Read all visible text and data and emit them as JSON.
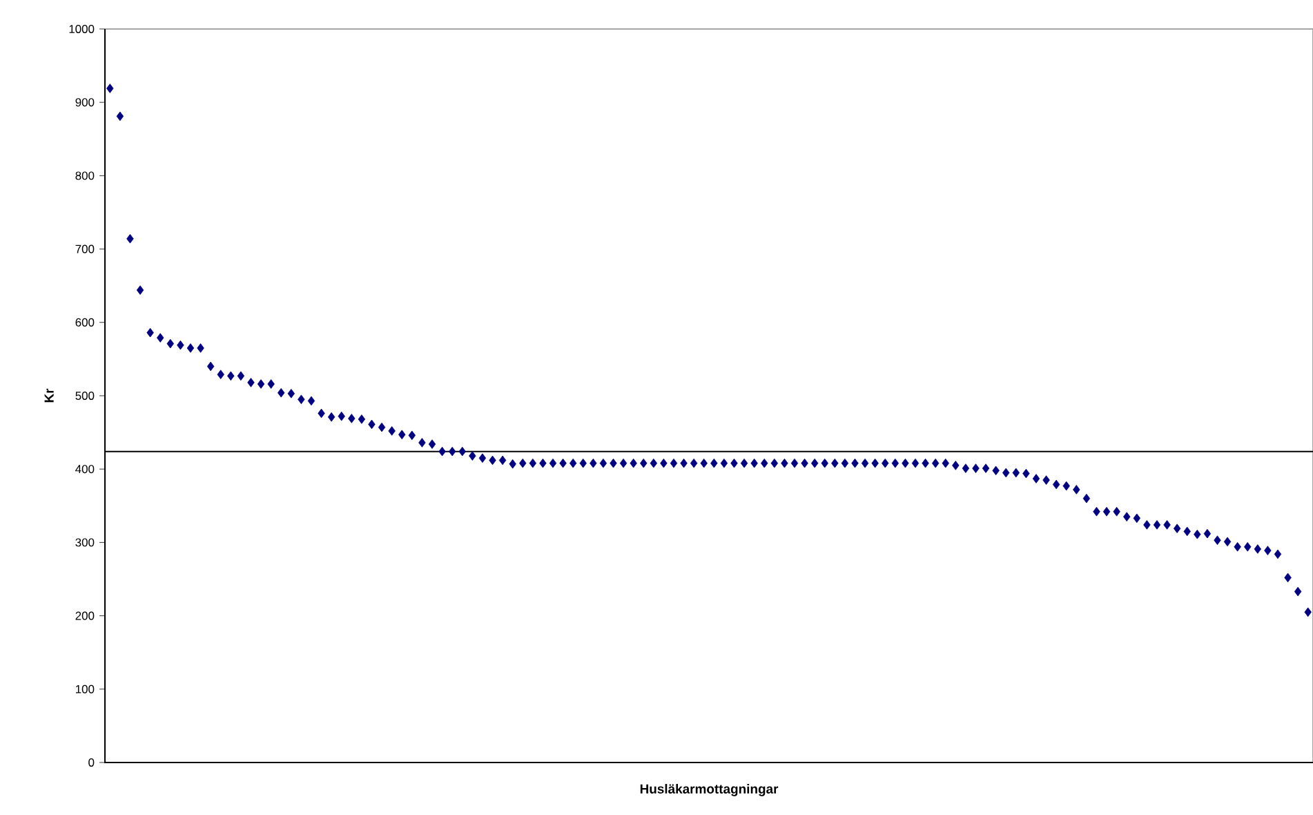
{
  "chart_data": {
    "type": "scatter",
    "xlabel": "Husläkarmottagningar",
    "ylabel": "Kr",
    "categories": [
      null,
      null,
      null,
      null,
      null,
      null,
      null,
      null,
      null,
      null,
      null,
      null,
      null,
      null,
      null,
      null,
      null,
      null,
      null,
      null,
      null,
      null,
      null,
      null,
      null,
      null,
      null,
      null,
      null,
      null,
      null,
      null,
      null,
      null,
      null,
      null,
      null,
      null,
      null,
      null,
      null,
      null,
      null,
      null,
      null,
      null,
      null,
      null,
      null,
      null,
      null,
      null,
      null,
      null,
      null,
      null,
      null,
      null,
      null,
      null,
      null,
      null,
      null,
      null,
      null,
      null,
      null,
      null,
      null,
      null,
      null,
      null,
      null,
      null,
      null,
      null,
      null,
      null,
      null,
      null,
      null,
      null,
      null,
      null,
      null,
      null,
      null,
      null,
      null,
      null,
      null,
      null,
      null,
      null,
      null,
      null,
      null,
      null,
      null,
      null,
      null,
      null,
      null,
      null,
      null,
      null,
      null,
      null,
      null,
      null,
      null,
      null,
      null,
      null,
      null,
      null,
      null,
      null,
      null,
      null
    ],
    "values": [
      919,
      881,
      714,
      644,
      586,
      579,
      571,
      569,
      565,
      565,
      540,
      529,
      527,
      527,
      518,
      516,
      516,
      504,
      503,
      495,
      493,
      476,
      471,
      472,
      469,
      468,
      461,
      457,
      452,
      447,
      446,
      436,
      434,
      424,
      424,
      424,
      418,
      415,
      412,
      412,
      407,
      408,
      408,
      408,
      408,
      408,
      408,
      408,
      408,
      408,
      408,
      408,
      408,
      408,
      408,
      408,
      408,
      408,
      408,
      408,
      408,
      408,
      408,
      408,
      408,
      408,
      408,
      408,
      408,
      408,
      408,
      408,
      408,
      408,
      408,
      408,
      408,
      408,
      408,
      408,
      408,
      408,
      408,
      408,
      405,
      401,
      401,
      401,
      398,
      395,
      395,
      394,
      387,
      385,
      379,
      377,
      372,
      360,
      342,
      342,
      342,
      335,
      333,
      324,
      324,
      324,
      319,
      315,
      311,
      312,
      303,
      301,
      294,
      294,
      291,
      289,
      284,
      252,
      233,
      205
    ],
    "color": "#000080",
    "marker": "diamond",
    "ylim": [
      0,
      1000
    ],
    "yticks": [
      0,
      100,
      200,
      300,
      400,
      500,
      600,
      700,
      800,
      900,
      1000
    ],
    "ref_lines": [
      {
        "axis": "y",
        "value": 424,
        "color": "#000000"
      }
    ],
    "grid": false,
    "tick_labels": "y"
  }
}
